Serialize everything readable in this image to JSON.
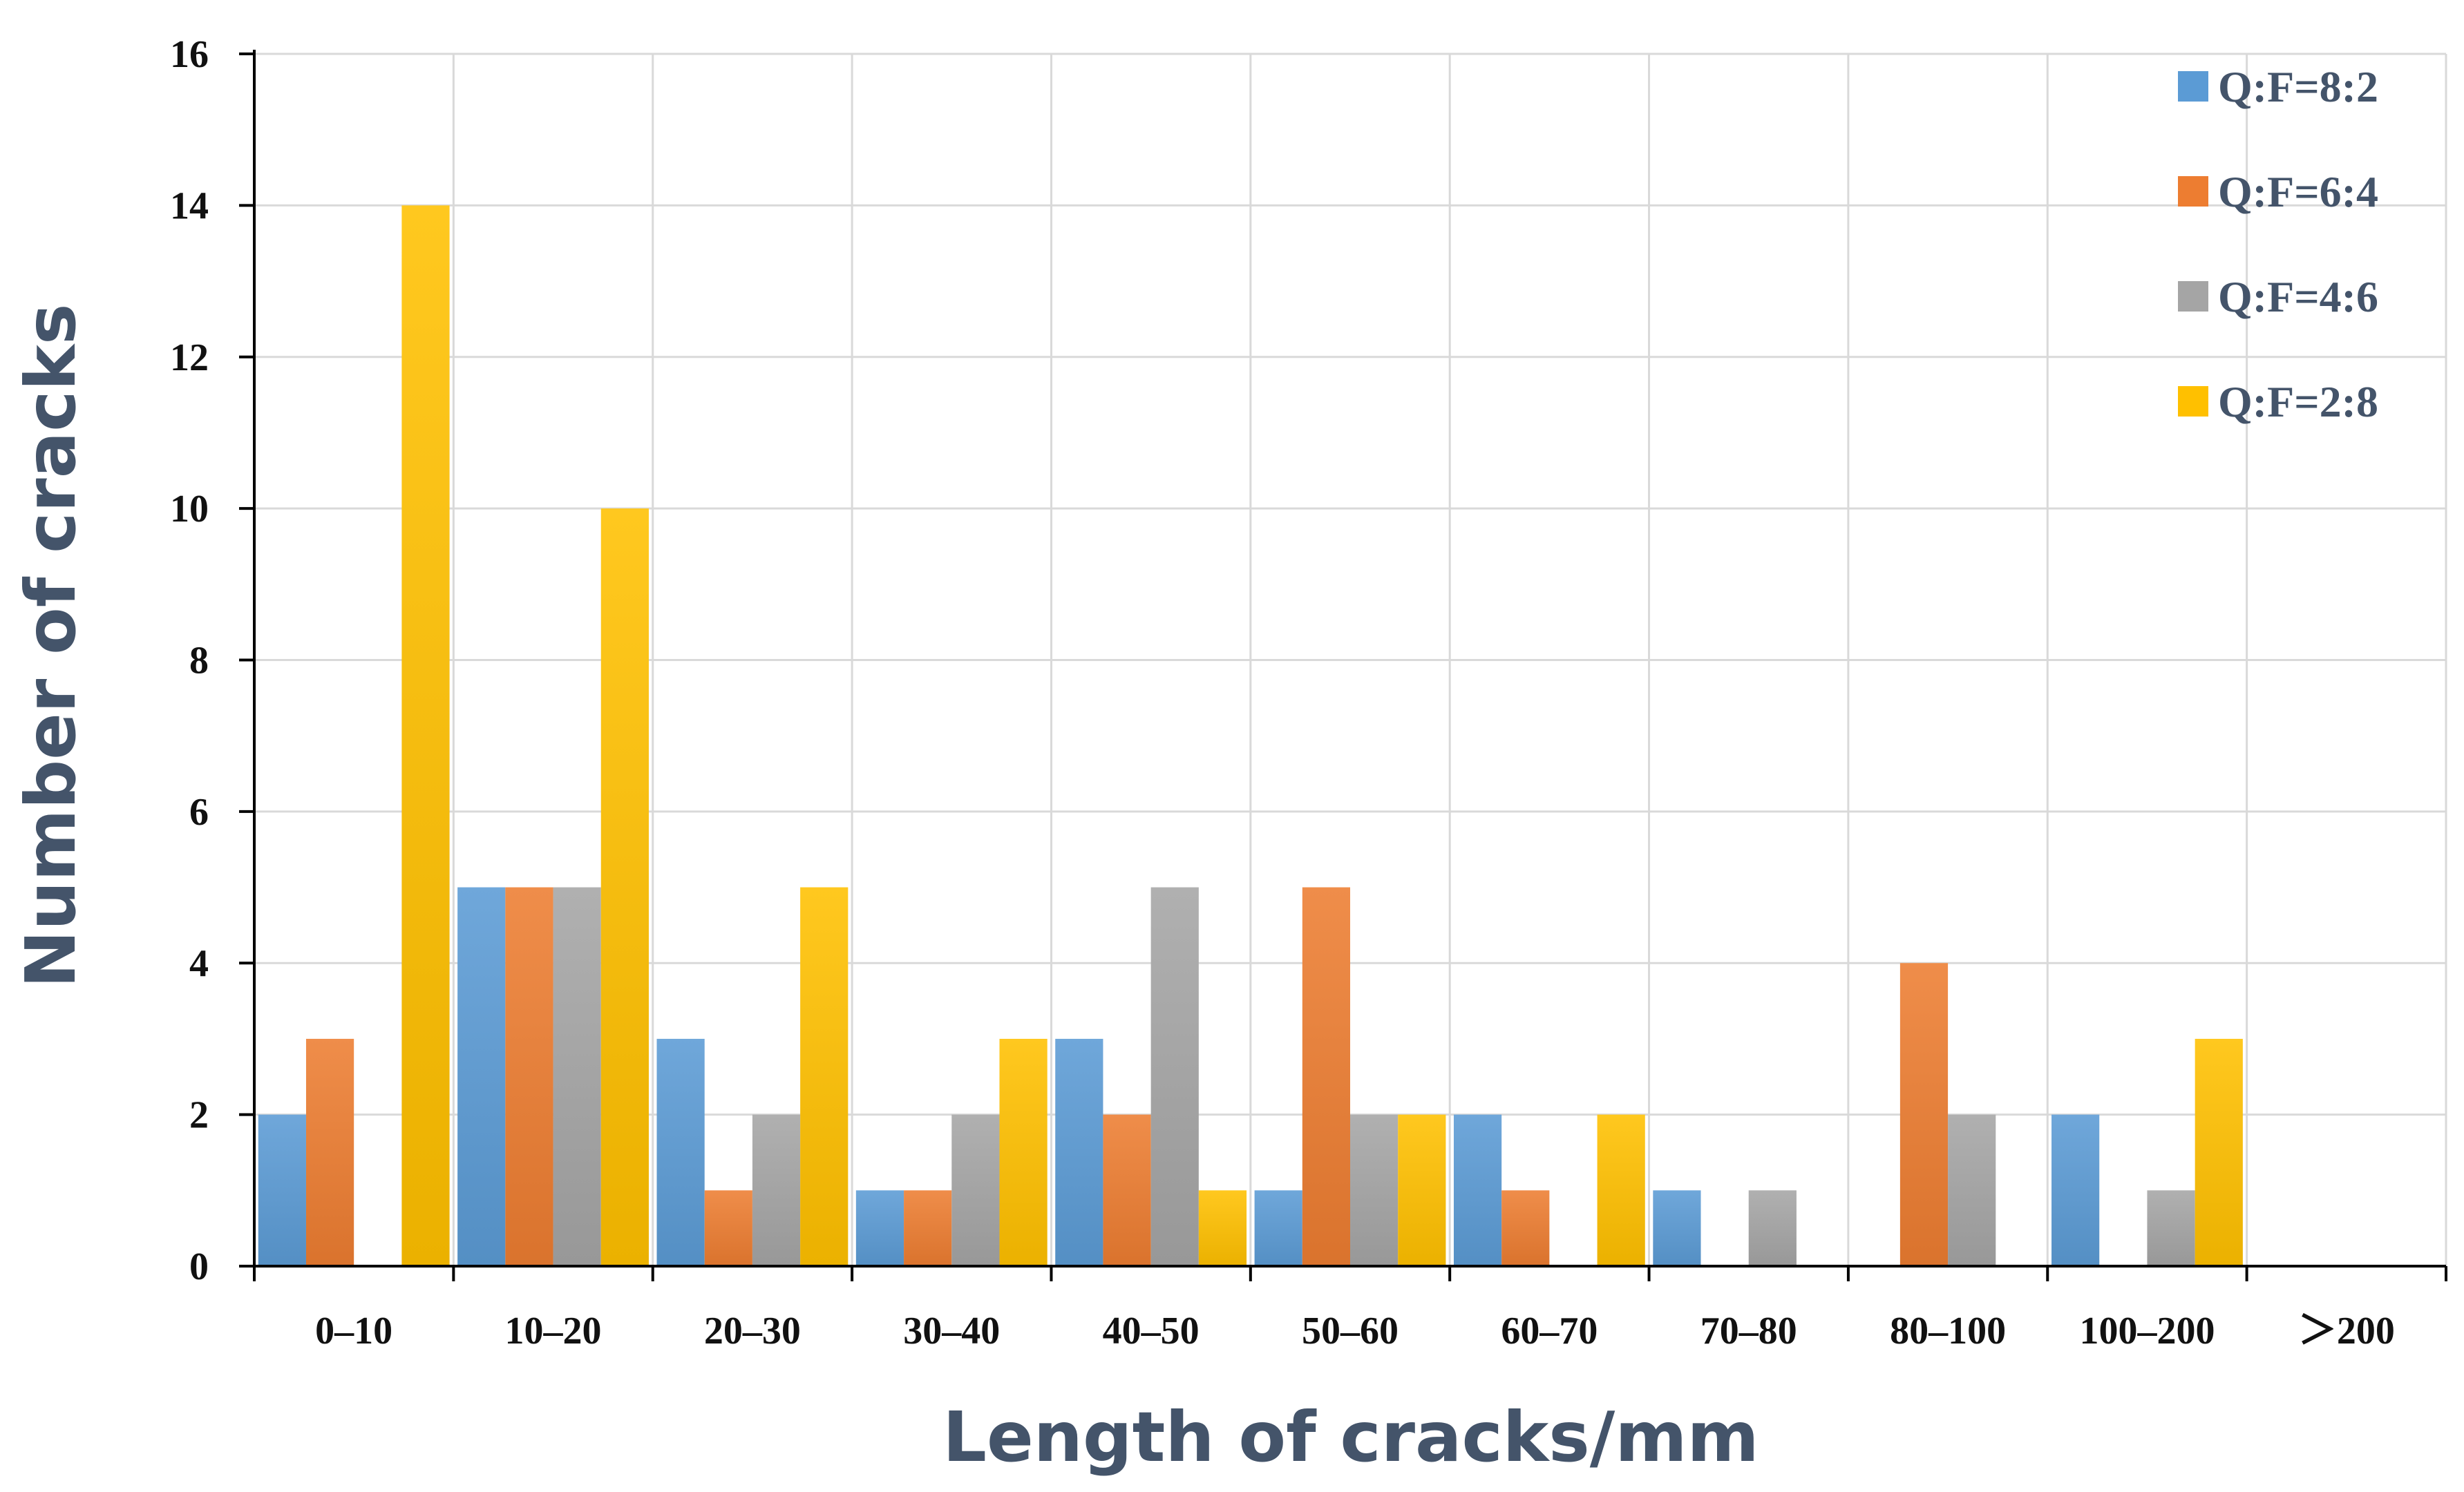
{
  "chart_data": {
    "type": "bar",
    "title": "",
    "xlabel": "Length of cracks/mm",
    "ylabel": "Number of cracks",
    "categories": [
      "0–10",
      "10–20",
      "20–30",
      "30–40",
      "40–50",
      "50–60",
      "60–70",
      "70–80",
      "80–100",
      "100–200",
      "＞200"
    ],
    "ylim": [
      0,
      16
    ],
    "yticks": [
      0,
      2,
      4,
      6,
      8,
      10,
      12,
      14,
      16
    ],
    "grid": true,
    "legend_position": "top-right",
    "series": [
      {
        "name": "Q:F=8:2",
        "color": "#5b9bd5",
        "values": [
          2,
          5,
          3,
          1,
          3,
          1,
          2,
          1,
          0,
          2,
          0
        ]
      },
      {
        "name": "Q:F=6:4",
        "color": "#ed7d31",
        "values": [
          3,
          5,
          1,
          1,
          2,
          5,
          1,
          0,
          4,
          0,
          0
        ]
      },
      {
        "name": "Q:F=4:6",
        "color": "#a5a5a5",
        "values": [
          0,
          5,
          2,
          2,
          5,
          2,
          0,
          1,
          2,
          1,
          0
        ]
      },
      {
        "name": "Q:F=2:8",
        "color": "#ffc000",
        "values": [
          14,
          10,
          5,
          3,
          1,
          2,
          2,
          0,
          0,
          3,
          0
        ]
      }
    ]
  }
}
